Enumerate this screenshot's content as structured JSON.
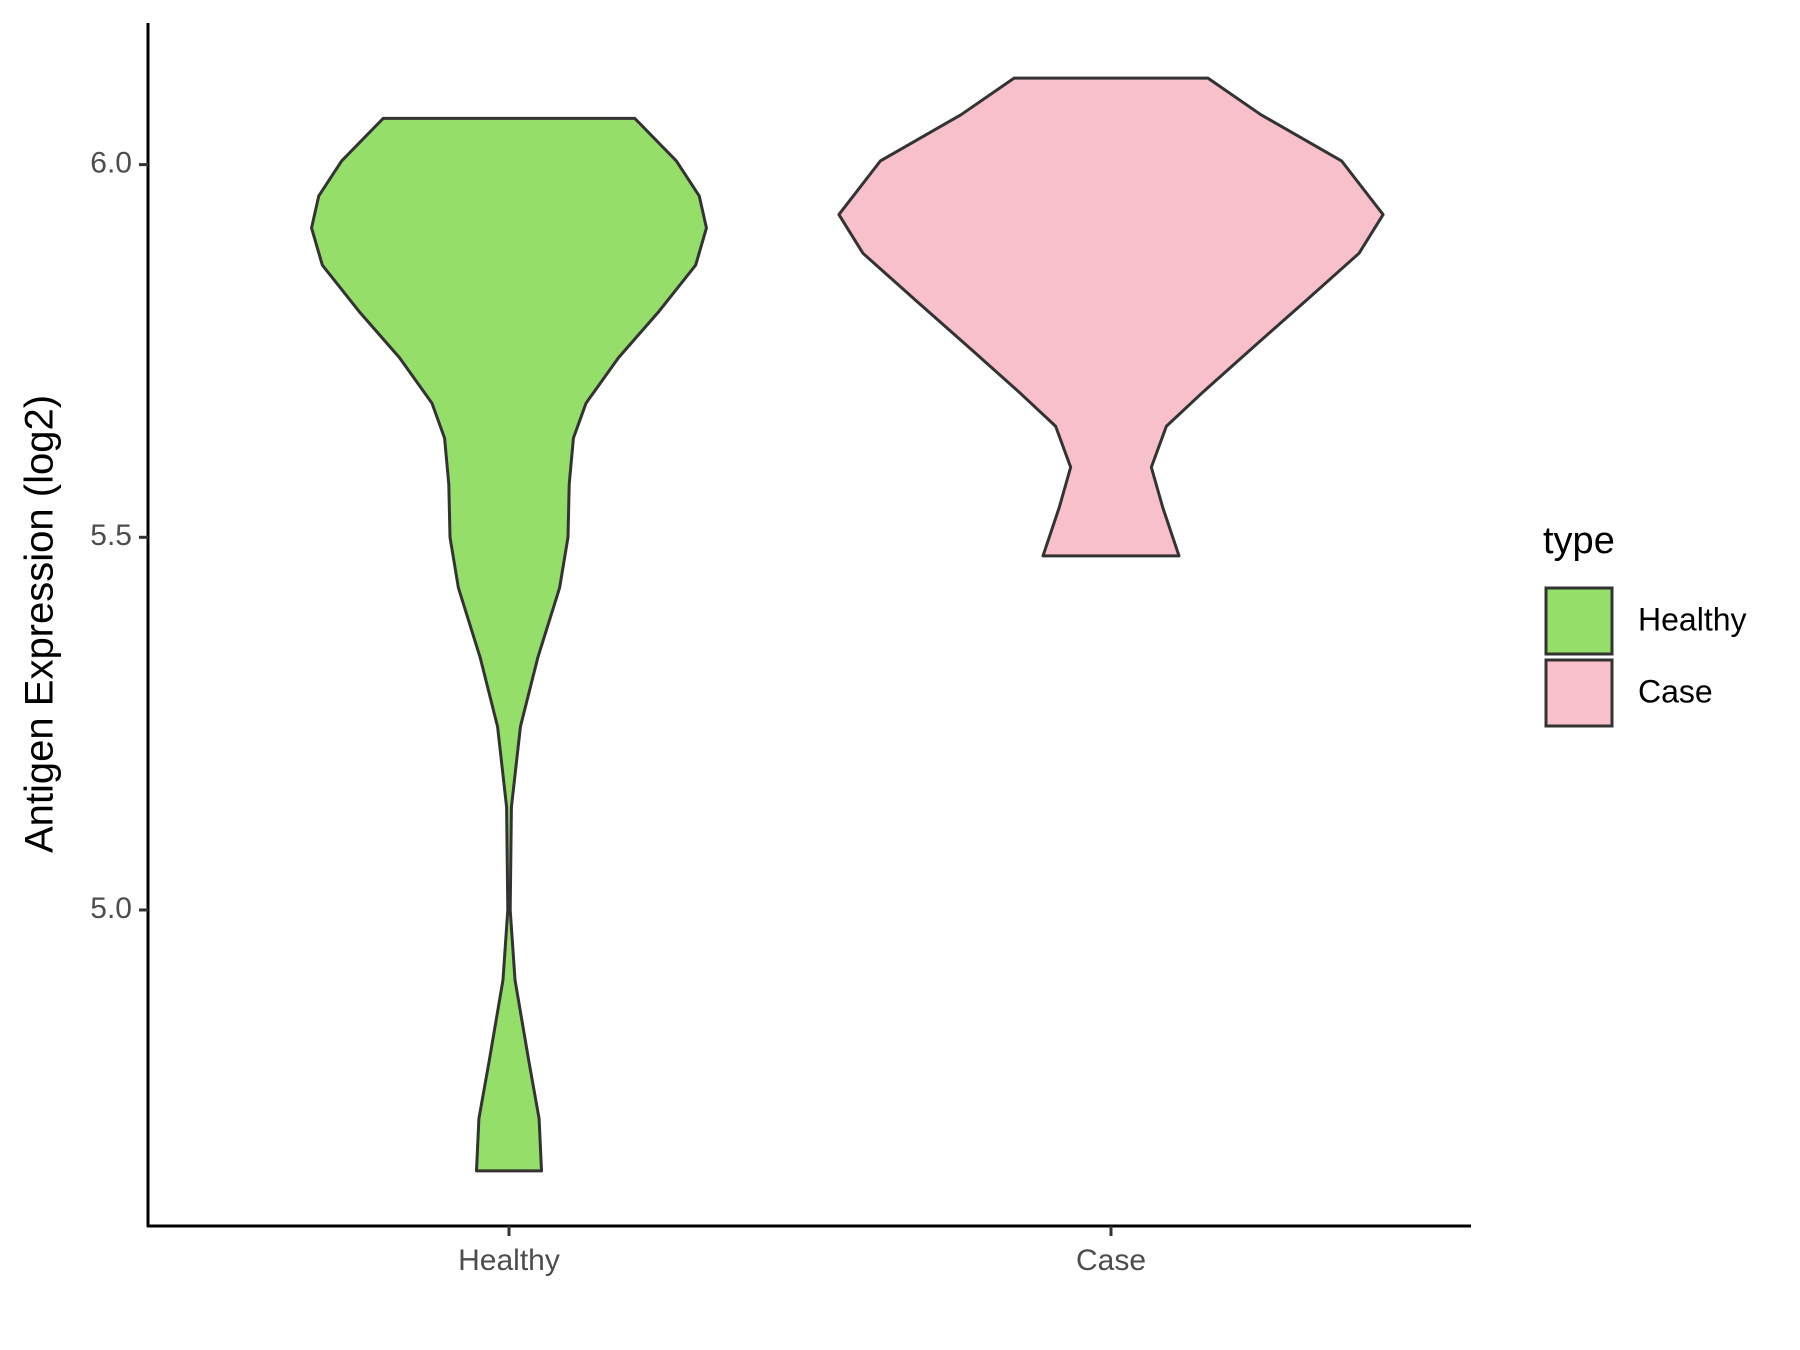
{
  "chart_data": {
    "type": "violin",
    "y_label": "Antigen Expression (log2)",
    "legend_title": "type",
    "categories": [
      "Healthy",
      "Case"
    ],
    "ylim": [
      4.576,
      6.19
    ],
    "yticks": [
      {
        "value": 5,
        "label": "5.0"
      },
      5.5,
      {
        "value": 6,
        "label": "6.0"
      }
    ],
    "series": [
      {
        "name": "Healthy",
        "color": "#95de6a",
        "values": [
          6.062,
          6.005,
          5.958,
          5.915,
          5.865,
          5.803,
          5.741,
          5.68,
          5.633,
          5.571,
          5.5,
          5.432,
          5.339,
          5.246,
          5.138,
          5.0,
          4.906,
          4.797,
          4.72,
          4.65
        ],
        "density": [
          0.209,
          0.278,
          0.316,
          0.328,
          0.31,
          0.249,
          0.182,
          0.128,
          0.107,
          0.1,
          0.098,
          0.084,
          0.048,
          0.019,
          0.004,
          0.002,
          0.01,
          0.033,
          0.05,
          0.054
        ]
      },
      {
        "name": "Case",
        "color": "#f7c0cb",
        "values": [
          6.116,
          6.067,
          6.005,
          5.933,
          5.881,
          5.819,
          5.757,
          5.695,
          5.649,
          5.594,
          5.54,
          5.475
        ],
        "density": [
          0.161,
          0.249,
          0.383,
          0.452,
          0.412,
          0.326,
          0.239,
          0.153,
          0.092,
          0.067,
          0.086,
          0.113
        ]
      }
    ]
  }
}
